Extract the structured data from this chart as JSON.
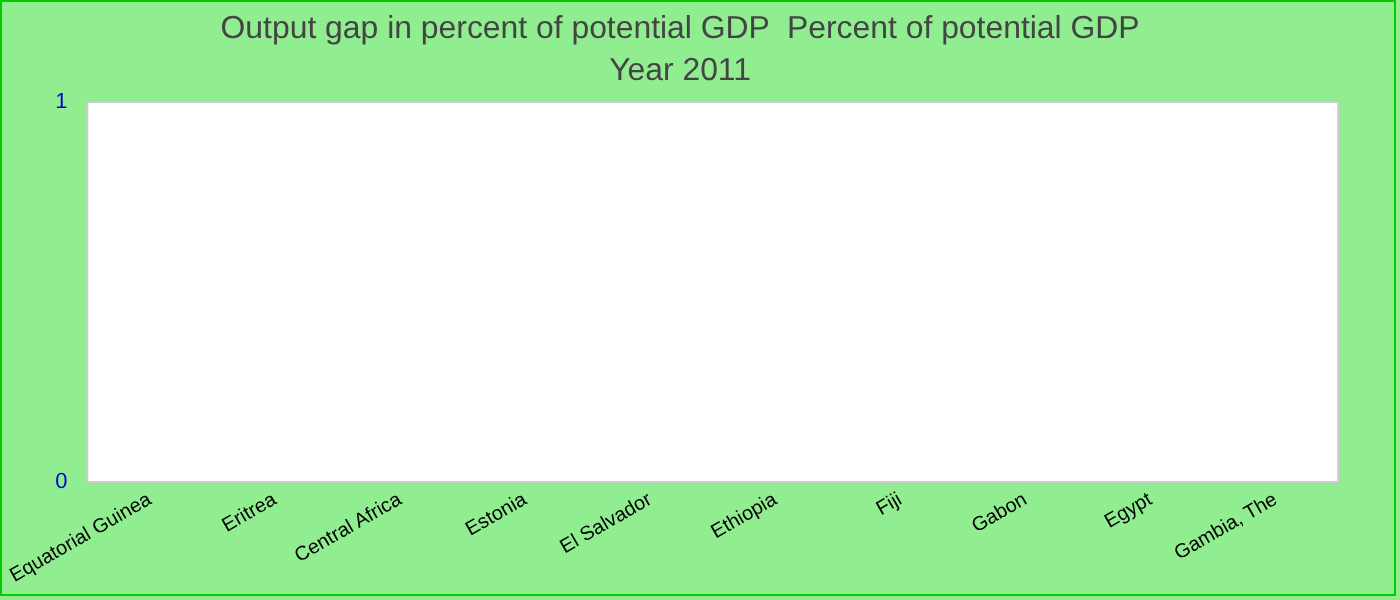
{
  "chart_data": {
    "type": "bar",
    "title": "Output gap in percent of potential GDP  Percent of potential GDP",
    "subtitle": "Year 2011",
    "categories": [
      "Equatorial Guinea",
      "Eritrea",
      "Central Africa",
      "Estonia",
      "El Salvador",
      "Ethiopia",
      "Fiji",
      "Gabon",
      "Egypt",
      "Gambia, The"
    ],
    "values": [
      null,
      null,
      null,
      null,
      null,
      null,
      null,
      null,
      null,
      null
    ],
    "ylim": [
      0,
      1
    ],
    "yticks": [
      0,
      1
    ],
    "grid": false,
    "legend": false
  }
}
